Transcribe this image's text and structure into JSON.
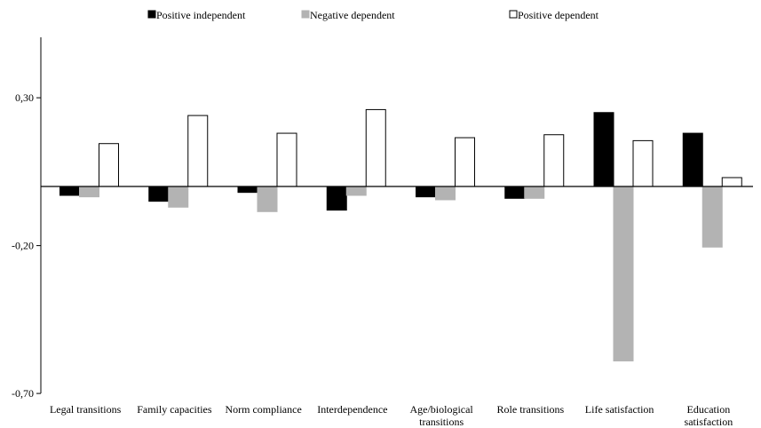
{
  "chart_data": {
    "type": "bar",
    "title": "",
    "xlabel": "",
    "ylabel": "",
    "ylim": [
      -0.7,
      0.5
    ],
    "yticks": [
      0.3,
      -0.2,
      -0.7
    ],
    "ytick_labels": [
      "0,30",
      "-0,20",
      "-0,70"
    ],
    "grid": false,
    "legend_position": "top",
    "categories": [
      [
        "Legal transitions"
      ],
      [
        "Family capacities"
      ],
      [
        "Norm compliance"
      ],
      [
        "Interdependence"
      ],
      [
        "Age/biological",
        "transitions"
      ],
      [
        "Role transitions"
      ],
      [
        "Life satisfaction"
      ],
      [
        "Education",
        "satisfaction"
      ]
    ],
    "series": [
      {
        "name": "Positive independent",
        "fill": "#000000",
        "stroke": "#000000",
        "values": [
          -0.03,
          -0.05,
          -0.02,
          -0.08,
          -0.035,
          -0.04,
          0.25,
          0.18
        ]
      },
      {
        "name": "Negative dependent",
        "fill": "#b3b3b3",
        "stroke": "#b3b3b3",
        "values": [
          -0.035,
          -0.07,
          -0.085,
          -0.03,
          -0.045,
          -0.04,
          -0.59,
          -0.205
        ]
      },
      {
        "name": "Positive dependent",
        "fill": "#ffffff",
        "stroke": "#000000",
        "values": [
          0.145,
          0.24,
          0.18,
          0.26,
          0.165,
          0.175,
          0.155,
          0.03
        ]
      }
    ]
  }
}
